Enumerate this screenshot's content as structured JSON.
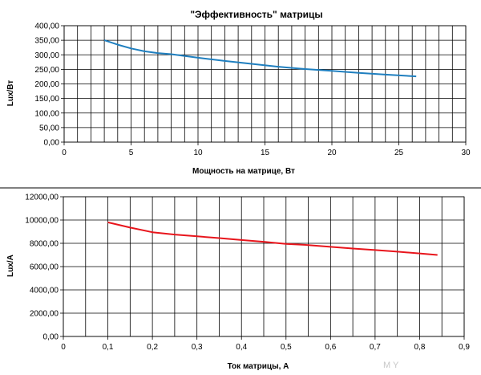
{
  "chart_data": [
    {
      "type": "line",
      "title": "\"Эффективность\" матрицы",
      "xlabel": "Мощность на матрице,  Вт",
      "ylabel": "Lux/Вт",
      "xlim": [
        0,
        30
      ],
      "ylim": [
        0,
        400
      ],
      "x_ticks": [
        "0",
        "5",
        "10",
        "15",
        "20",
        "25",
        "30"
      ],
      "y_ticks": [
        "0,00",
        "50,00",
        "100,00",
        "150,00",
        "200,00",
        "250,00",
        "300,00",
        "350,00",
        "400,00"
      ],
      "grid": true,
      "color": "#1f7fbf",
      "series": [
        {
          "x": [
            3,
            4,
            5,
            6,
            7,
            8,
            10,
            12,
            14,
            16,
            18,
            20,
            22,
            24,
            26.3
          ],
          "values": [
            350,
            335,
            322,
            312,
            306,
            302,
            290,
            279,
            269,
            259,
            251,
            245,
            238,
            232,
            226
          ]
        }
      ]
    },
    {
      "type": "line",
      "title": "",
      "xlabel": "Ток матрицы, А",
      "ylabel": "Lux/A",
      "xlim": [
        0,
        0.9
      ],
      "ylim": [
        0,
        12000
      ],
      "x_ticks": [
        "0",
        "0,1",
        "0,2",
        "0,3",
        "0,4",
        "0,5",
        "0,6",
        "0,7",
        "0,8",
        "0,9"
      ],
      "y_ticks": [
        "0,00",
        "2000,00",
        "4000,00",
        "6000,00",
        "8000,00",
        "10000,00",
        "12000,00"
      ],
      "grid": true,
      "color": "#e8151c",
      "series": [
        {
          "x": [
            0.1,
            0.15,
            0.2,
            0.25,
            0.3,
            0.35,
            0.4,
            0.45,
            0.5,
            0.55,
            0.6,
            0.65,
            0.7,
            0.75,
            0.8,
            0.84
          ],
          "values": [
            9800,
            9350,
            8950,
            8750,
            8600,
            8450,
            8280,
            8130,
            7950,
            7850,
            7700,
            7550,
            7420,
            7280,
            7130,
            7000
          ]
        }
      ]
    }
  ],
  "watermark": "M Y"
}
